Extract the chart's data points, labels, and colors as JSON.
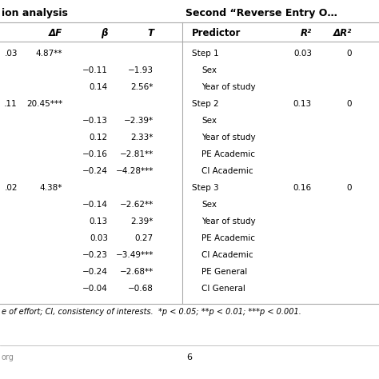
{
  "title_left": "ion analysis",
  "title_right": "Second “Reverse Entry O…",
  "headers_left": [
    "ΔF",
    "β",
    "T"
  ],
  "headers_right": [
    "Predictor",
    "R²",
    "ΔR²"
  ],
  "footnote": "e of effort; CI, consistency of interests.  *p < 0.05; **p < 0.01; ***p < 0.001.",
  "page_number": "6",
  "rows": [
    {
      "col0": ".03",
      "col1": "4.87**",
      "col2": "",
      "col3": "",
      "predictor": "Step 1",
      "r2": "0.03",
      "dr2": "0",
      "indent": false
    },
    {
      "col0": "",
      "col1": "",
      "col2": "−0.11",
      "col3": "−1.93",
      "predictor": "Sex",
      "r2": "",
      "dr2": "",
      "indent": true
    },
    {
      "col0": "",
      "col1": "",
      "col2": "0.14",
      "col3": "2.56*",
      "predictor": "Year of study",
      "r2": "",
      "dr2": "",
      "indent": true
    },
    {
      "col0": ".11",
      "col1": "20.45***",
      "col2": "",
      "col3": "",
      "predictor": "Step 2",
      "r2": "0.13",
      "dr2": "0",
      "indent": false
    },
    {
      "col0": "",
      "col1": "",
      "col2": "−0.13",
      "col3": "−2.39*",
      "predictor": "Sex",
      "r2": "",
      "dr2": "",
      "indent": true
    },
    {
      "col0": "",
      "col1": "",
      "col2": "0.12",
      "col3": "2.33*",
      "predictor": "Year of study",
      "r2": "",
      "dr2": "",
      "indent": true
    },
    {
      "col0": "",
      "col1": "",
      "col2": "−0.16",
      "col3": "−2.81**",
      "predictor": "PE Academic",
      "r2": "",
      "dr2": "",
      "indent": true
    },
    {
      "col0": "",
      "col1": "",
      "col2": "−0.24",
      "col3": "−4.28***",
      "predictor": "CI Academic",
      "r2": "",
      "dr2": "",
      "indent": true
    },
    {
      "col0": ".02",
      "col1": "4.38*",
      "col2": "",
      "col3": "",
      "predictor": "Step 3",
      "r2": "0.16",
      "dr2": "0",
      "indent": false
    },
    {
      "col0": "",
      "col1": "",
      "col2": "−0.14",
      "col3": "−2.62**",
      "predictor": "Sex",
      "r2": "",
      "dr2": "",
      "indent": true
    },
    {
      "col0": "",
      "col1": "",
      "col2": "0.13",
      "col3": "2.39*",
      "predictor": "Year of study",
      "r2": "",
      "dr2": "",
      "indent": true
    },
    {
      "col0": "",
      "col1": "",
      "col2": "0.03",
      "col3": "0.27",
      "predictor": "PE Academic",
      "r2": "",
      "dr2": "",
      "indent": true
    },
    {
      "col0": "",
      "col1": "",
      "col2": "−0.23",
      "col3": "−3.49***",
      "predictor": "CI Academic",
      "r2": "",
      "dr2": "",
      "indent": true
    },
    {
      "col0": "",
      "col1": "",
      "col2": "−0.24",
      "col3": "−2.68**",
      "predictor": "PE General",
      "r2": "",
      "dr2": "",
      "indent": true
    },
    {
      "col0": "",
      "col1": "",
      "col2": "−0.04",
      "col3": "−0.68",
      "predictor": "CI General",
      "r2": "",
      "dr2": "",
      "indent": true
    }
  ],
  "bg_color": "#ffffff",
  "text_color": "#000000",
  "line_color": "#aaaaaa",
  "font_size": 7.5,
  "header_font_size": 8.5,
  "title_font_size": 9.0
}
